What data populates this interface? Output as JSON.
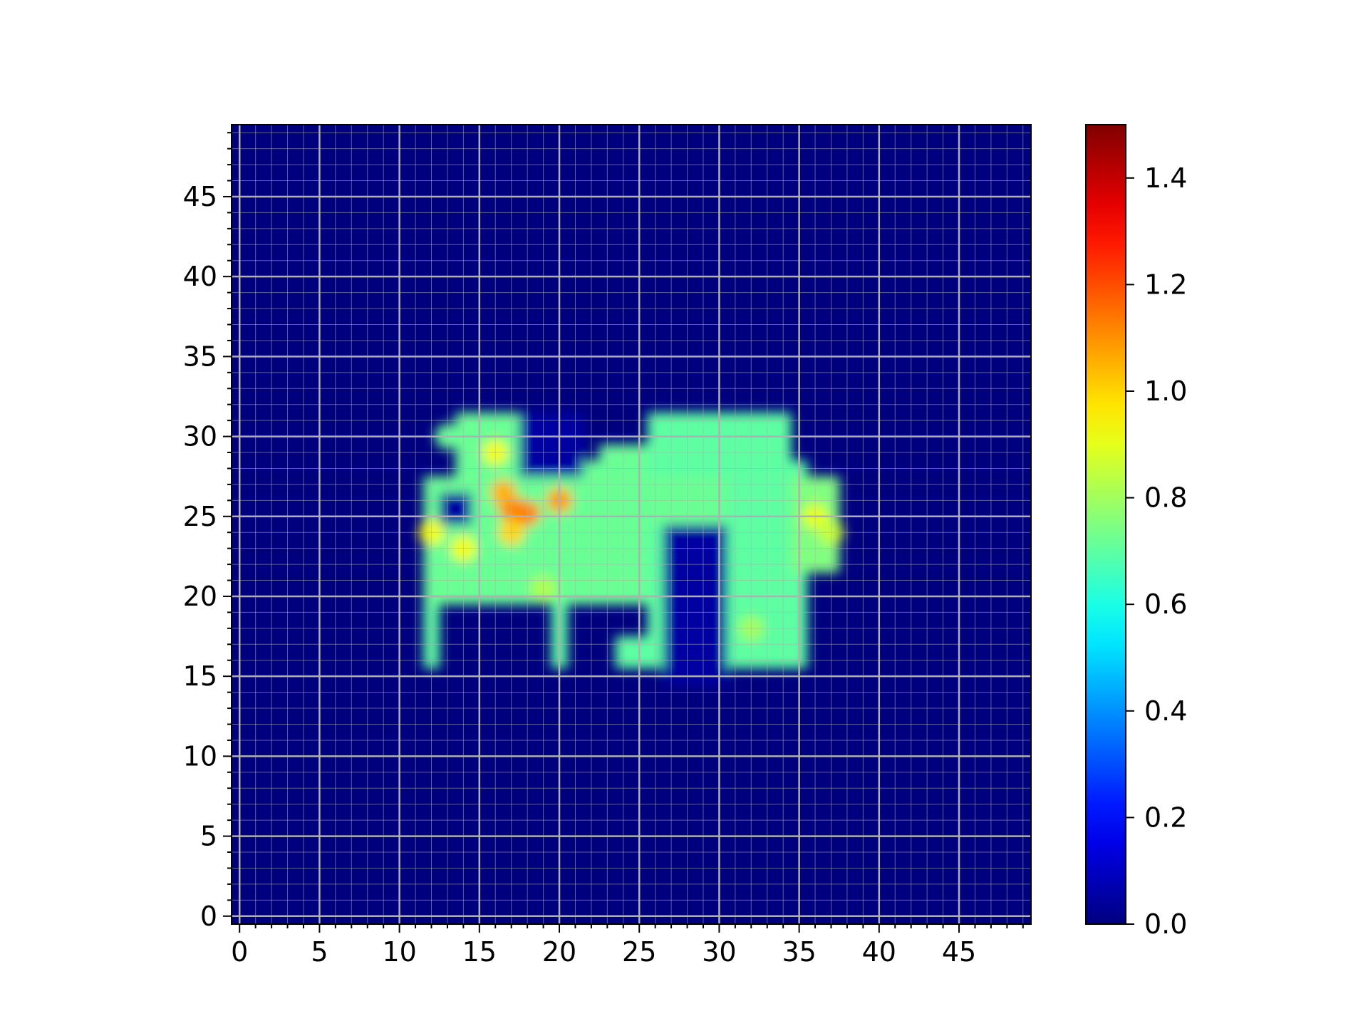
{
  "chart_data": {
    "type": "heatmap",
    "title": "",
    "xlabel": "",
    "ylabel": "",
    "xlim": [
      -0.5,
      49.5
    ],
    "ylim": [
      -0.5,
      49.5
    ],
    "x_ticks": [
      0,
      5,
      10,
      15,
      20,
      25,
      30,
      35,
      40,
      45
    ],
    "y_ticks": [
      0,
      5,
      10,
      15,
      20,
      25,
      30,
      35,
      40,
      45
    ],
    "x_tick_labels": [
      "0",
      "5",
      "10",
      "15",
      "20",
      "25",
      "30",
      "35",
      "40",
      "45"
    ],
    "y_tick_labels": [
      "0",
      "5",
      "10",
      "15",
      "20",
      "25",
      "30",
      "35",
      "40",
      "45"
    ],
    "grid": true,
    "minor_grid": true,
    "colormap": "jet",
    "interpolation": "smooth",
    "background_value": 0.0,
    "colorbar": {
      "vmin": 0.0,
      "vmax": 1.5,
      "ticks": [
        0.0,
        0.2,
        0.4,
        0.6,
        0.8,
        1.0,
        1.2,
        1.4
      ],
      "tick_labels": [
        "0.0",
        "0.2",
        "0.4",
        "0.6",
        "0.8",
        "1.0",
        "1.2",
        "1.4"
      ],
      "placement": "right"
    },
    "regions": [
      {
        "name": "upper-left-blob",
        "x": [
          14,
          18
        ],
        "y": [
          28,
          31
        ],
        "value": 0.72
      },
      {
        "name": "central-band",
        "x": [
          16,
          34
        ],
        "y": [
          20,
          28
        ],
        "value": 0.72
      },
      {
        "name": "left-block",
        "x": [
          12,
          16
        ],
        "y": [
          20,
          27
        ],
        "value": 0.72
      },
      {
        "name": "step-right",
        "x": [
          23,
          26
        ],
        "y": [
          28,
          29
        ],
        "value": 0.72
      },
      {
        "name": "top-right-block",
        "x": [
          26,
          34
        ],
        "y": [
          28,
          31
        ],
        "value": 0.7
      },
      {
        "name": "right-column",
        "x": [
          31,
          35
        ],
        "y": [
          16,
          28
        ],
        "value": 0.7
      },
      {
        "name": "right-edge",
        "x": [
          35,
          37
        ],
        "y": [
          22,
          27
        ],
        "value": 0.75
      },
      {
        "name": "left-leg",
        "x": [
          12,
          12
        ],
        "y": [
          16,
          19
        ],
        "value": 0.7
      },
      {
        "name": "middle-leg",
        "x": [
          20,
          20
        ],
        "y": [
          16,
          19
        ],
        "value": 0.7
      },
      {
        "name": "foot",
        "x": [
          24,
          26
        ],
        "y": [
          16,
          17
        ],
        "value": 0.7
      },
      {
        "name": "inner-leg",
        "x": [
          26,
          26
        ],
        "y": [
          17,
          24
        ],
        "value": 0.7
      }
    ],
    "holes": [
      {
        "name": "ring-hole",
        "x": [
          13,
          14
        ],
        "y": [
          25,
          26
        ],
        "value": 0.05
      },
      {
        "name": "upper-gap",
        "x": [
          18,
          21
        ],
        "y": [
          28,
          31
        ],
        "value": 0.05
      },
      {
        "name": "door",
        "x": [
          27,
          30
        ],
        "y": [
          15,
          24
        ],
        "value": 0.05
      }
    ],
    "hotspots": [
      {
        "x": 13,
        "y": 30,
        "value": 0.72
      },
      {
        "x": 17,
        "y": 25.5,
        "value": 1.12
      },
      {
        "x": 18,
        "y": 25.2,
        "value": 1.12
      },
      {
        "x": 16.5,
        "y": 26.5,
        "value": 1.05
      },
      {
        "x": 17,
        "y": 24,
        "value": 1.0
      },
      {
        "x": 20,
        "y": 26,
        "value": 1.08
      },
      {
        "x": 16,
        "y": 29,
        "value": 0.92
      },
      {
        "x": 14,
        "y": 23,
        "value": 0.92
      },
      {
        "x": 12,
        "y": 24,
        "value": 0.92
      },
      {
        "x": 36,
        "y": 25,
        "value": 0.9
      },
      {
        "x": 37,
        "y": 24,
        "value": 0.85
      },
      {
        "x": 19,
        "y": 20.5,
        "value": 0.82
      },
      {
        "x": 32,
        "y": 18,
        "value": 0.8
      }
    ]
  }
}
